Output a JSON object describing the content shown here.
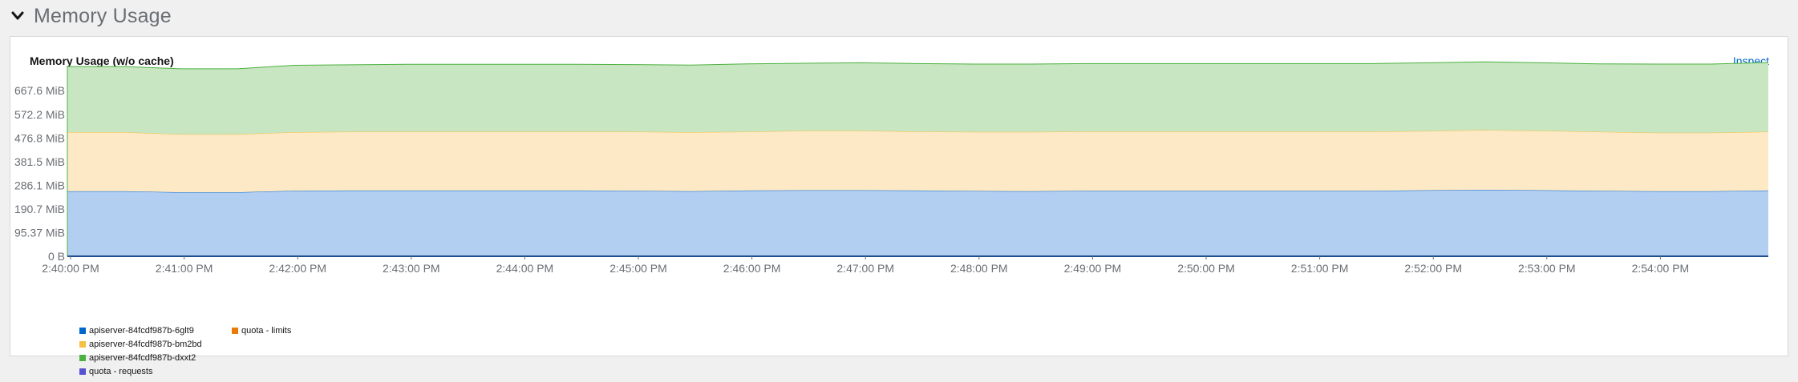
{
  "section": {
    "title": "Memory Usage",
    "toggle_icon": "chevron-down-icon"
  },
  "card": {
    "title": "Memory Usage (w/o cache)",
    "inspect_label": "Inspect"
  },
  "colors": {
    "series_blue_fill": "#b2cff2",
    "series_blue_line": "#0066cc",
    "series_orange_fill": "#fde9c6",
    "series_orange_line": "#f4c145",
    "series_green_fill": "#c8e6c1",
    "series_green_line": "#4cb140",
    "legend_blue": "#0066cc",
    "legend_yellow": "#f4c145",
    "legend_green": "#4cb140",
    "legend_purple": "#5752d1",
    "legend_orange": "#ec7a08",
    "grid": "#e6e6e6"
  },
  "chart_data": {
    "type": "area",
    "stacked": true,
    "title": "Memory Usage (w/o cache)",
    "y_unit": "MiB",
    "ylim": [
      0,
      762
    ],
    "y_ticks": [
      {
        "value": 0,
        "label": "0 B"
      },
      {
        "value": 95.37,
        "label": "95.37 MiB"
      },
      {
        "value": 190.7,
        "label": "190.7 MiB"
      },
      {
        "value": 286.1,
        "label": "286.1 MiB"
      },
      {
        "value": 381.5,
        "label": "381.5 MiB"
      },
      {
        "value": 476.8,
        "label": "476.8 MiB"
      },
      {
        "value": 572.2,
        "label": "572.2 MiB"
      },
      {
        "value": 667.6,
        "label": "667.6 MiB"
      }
    ],
    "x_ticks": [
      "2:40:00 PM",
      "2:41:00 PM",
      "2:42:00 PM",
      "2:43:00 PM",
      "2:44:00 PM",
      "2:45:00 PM",
      "2:46:00 PM",
      "2:47:00 PM",
      "2:48:00 PM",
      "2:49:00 PM",
      "2:50:00 PM",
      "2:51:00 PM",
      "2:52:00 PM",
      "2:53:00 PM",
      "2:54:00 PM"
    ],
    "x_minutes": [
      0,
      0.5,
      1,
      1.5,
      2,
      2.5,
      3,
      3.5,
      4,
      4.5,
      5,
      5.5,
      6,
      6.5,
      7,
      7.5,
      8,
      8.5,
      9,
      9.5,
      10,
      10.5,
      11,
      11.5,
      12,
      12.5,
      13,
      13.5,
      14,
      14.5,
      15
    ],
    "series": [
      {
        "name": "apiserver-84fcdf987b-6glt9",
        "values": [
          262,
          262,
          258,
          258,
          264,
          265,
          265,
          265,
          265,
          265,
          264,
          262,
          265,
          266,
          266,
          265,
          263,
          262,
          264,
          264,
          264,
          264,
          264,
          264,
          266,
          268,
          266,
          264,
          262,
          262,
          265
        ]
      },
      {
        "name": "apiserver-84fcdf987b-bm2bd",
        "values": [
          238,
          238,
          234,
          234,
          236,
          237,
          237,
          237,
          237,
          237,
          238,
          238,
          237,
          240,
          240,
          238,
          238,
          239,
          239,
          239,
          239,
          239,
          239,
          239,
          239,
          241,
          240,
          238,
          236,
          236,
          237
        ]
      },
      {
        "name": "apiserver-84fcdf987b-dxxt2",
        "values": [
          265,
          265,
          264,
          264,
          270,
          270,
          272,
          272,
          272,
          272,
          271,
          271,
          274,
          272,
          274,
          274,
          274,
          274,
          274,
          274,
          274,
          274,
          274,
          274,
          275,
          275,
          274,
          274,
          277,
          277,
          279
        ]
      }
    ],
    "legend": [
      {
        "name": "apiserver-84fcdf987b-6glt9",
        "color": "#0066cc"
      },
      {
        "name": "apiserver-84fcdf987b-bm2bd",
        "color": "#f4c145"
      },
      {
        "name": "apiserver-84fcdf987b-dxxt2",
        "color": "#4cb140"
      },
      {
        "name": "quota - requests",
        "color": "#5752d1"
      },
      {
        "name": "quota - limits",
        "color": "#ec7a08"
      }
    ],
    "legend_placement": "bottom-left",
    "grid": true
  }
}
